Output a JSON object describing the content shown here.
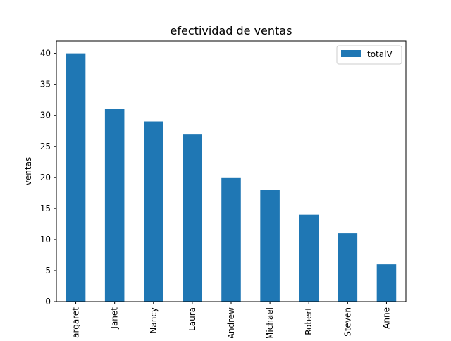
{
  "chart_data": {
    "type": "bar",
    "title": "efectividad de ventas",
    "xlabel": "",
    "ylabel": "ventas",
    "categories": [
      "Margaret",
      "Janet",
      "Nancy",
      "Laura",
      "Andrew",
      "Michael",
      "Robert",
      "Steven",
      "Anne"
    ],
    "series": [
      {
        "name": "totalV",
        "values": [
          40,
          31,
          29,
          27,
          20,
          18,
          14,
          11,
          6
        ],
        "color": "#1f77b4"
      }
    ],
    "ylim": [
      0,
      42
    ],
    "yticks": [
      0,
      5,
      10,
      15,
      20,
      25,
      30,
      35,
      40
    ],
    "grid": false,
    "legend_position": "top-right"
  }
}
